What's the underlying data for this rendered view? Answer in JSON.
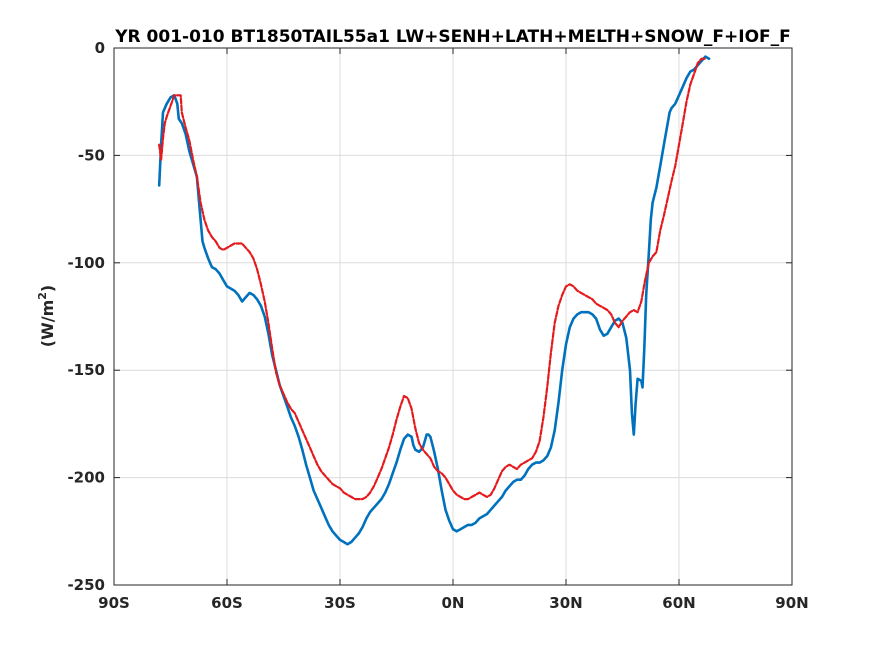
{
  "chart_data": {
    "type": "line",
    "title": "YR 001-010 BT1850TAIL55a1 LW+SENH+LATH+MELTH+SNOW_F+IOF_F",
    "xlabel": "",
    "ylabel": "(W/m",
    "ylabel_superscript": "2",
    "ylabel_suffix": ")",
    "xlim": [
      -90,
      90
    ],
    "ylim": [
      -250,
      0
    ],
    "xticks": [
      -90,
      -60,
      -30,
      0,
      30,
      60,
      90
    ],
    "xtick_labels": [
      "90S",
      "60S",
      "30S",
      "0N",
      "30N",
      "60N",
      "90N"
    ],
    "yticks": [
      -250,
      -200,
      -150,
      -100,
      -50,
      0
    ],
    "ytick_labels": [
      "-250",
      "-200",
      "-150",
      "-100",
      "-50",
      "0"
    ],
    "grid": true,
    "legend": false,
    "series": [
      {
        "color": "#0072BD",
        "style": "solid",
        "points": [
          [
            -78,
            -64
          ],
          [
            -77.5,
            -45
          ],
          [
            -77,
            -30
          ],
          [
            -76,
            -26
          ],
          [
            -75,
            -23
          ],
          [
            -74,
            -22
          ],
          [
            -73.2,
            -26
          ],
          [
            -72.8,
            -33
          ],
          [
            -72,
            -35
          ],
          [
            -71,
            -40
          ],
          [
            -70,
            -48
          ],
          [
            -69,
            -54
          ],
          [
            -68,
            -60
          ],
          [
            -67,
            -80
          ],
          [
            -66.5,
            -90
          ],
          [
            -66,
            -93
          ],
          [
            -65,
            -98
          ],
          [
            -64,
            -102
          ],
          [
            -63,
            -103
          ],
          [
            -62,
            -105
          ],
          [
            -61,
            -108
          ],
          [
            -60,
            -111
          ],
          [
            -59,
            -112
          ],
          [
            -58,
            -113
          ],
          [
            -57,
            -115
          ],
          [
            -56,
            -118
          ],
          [
            -55,
            -116
          ],
          [
            -54,
            -114
          ],
          [
            -53,
            -115
          ],
          [
            -52,
            -117
          ],
          [
            -51,
            -120
          ],
          [
            -50,
            -125
          ],
          [
            -49,
            -133
          ],
          [
            -48,
            -143
          ],
          [
            -47,
            -150
          ],
          [
            -46,
            -157
          ],
          [
            -45,
            -162
          ],
          [
            -44,
            -167
          ],
          [
            -43,
            -172
          ],
          [
            -42,
            -176
          ],
          [
            -41,
            -181
          ],
          [
            -40,
            -187
          ],
          [
            -39,
            -194
          ],
          [
            -38,
            -200
          ],
          [
            -37,
            -206
          ],
          [
            -36,
            -210
          ],
          [
            -35,
            -214
          ],
          [
            -34,
            -218
          ],
          [
            -33,
            -222
          ],
          [
            -32,
            -225
          ],
          [
            -31,
            -227
          ],
          [
            -30,
            -229
          ],
          [
            -29,
            -230
          ],
          [
            -28,
            -231
          ],
          [
            -27,
            -230
          ],
          [
            -26,
            -228
          ],
          [
            -25,
            -226
          ],
          [
            -24,
            -223
          ],
          [
            -23,
            -219
          ],
          [
            -22,
            -216
          ],
          [
            -21,
            -214
          ],
          [
            -20,
            -212
          ],
          [
            -19,
            -210
          ],
          [
            -18,
            -207
          ],
          [
            -17,
            -203
          ],
          [
            -16,
            -198
          ],
          [
            -15,
            -193
          ],
          [
            -14,
            -187
          ],
          [
            -13,
            -182
          ],
          [
            -12,
            -180
          ],
          [
            -11,
            -181
          ],
          [
            -10.5,
            -185
          ],
          [
            -10,
            -187
          ],
          [
            -9,
            -188
          ],
          [
            -8,
            -186
          ],
          [
            -7.5,
            -183
          ],
          [
            -7,
            -180
          ],
          [
            -6.5,
            -180
          ],
          [
            -6,
            -181
          ],
          [
            -5,
            -188
          ],
          [
            -4,
            -196
          ],
          [
            -3,
            -206
          ],
          [
            -2,
            -215
          ],
          [
            -1,
            -220
          ],
          [
            0,
            -224
          ],
          [
            1,
            -225
          ],
          [
            2,
            -224
          ],
          [
            3,
            -223
          ],
          [
            4,
            -222
          ],
          [
            5,
            -222
          ],
          [
            6,
            -221
          ],
          [
            7,
            -219
          ],
          [
            8,
            -218
          ],
          [
            9,
            -217
          ],
          [
            10,
            -215
          ],
          [
            11,
            -213
          ],
          [
            12,
            -211
          ],
          [
            13,
            -209
          ],
          [
            14,
            -206
          ],
          [
            15,
            -204
          ],
          [
            16,
            -202
          ],
          [
            17,
            -201
          ],
          [
            18,
            -201
          ],
          [
            19,
            -199
          ],
          [
            20,
            -196
          ],
          [
            21,
            -194
          ],
          [
            22,
            -193
          ],
          [
            23,
            -193
          ],
          [
            24,
            -192
          ],
          [
            25,
            -190
          ],
          [
            26,
            -186
          ],
          [
            27,
            -178
          ],
          [
            28,
            -165
          ],
          [
            29,
            -150
          ],
          [
            30,
            -138
          ],
          [
            31,
            -130
          ],
          [
            32,
            -126
          ],
          [
            33,
            -124
          ],
          [
            34,
            -123
          ],
          [
            35,
            -123
          ],
          [
            36,
            -123
          ],
          [
            37,
            -124
          ],
          [
            38,
            -126
          ],
          [
            39,
            -131
          ],
          [
            40,
            -134
          ],
          [
            41,
            -133
          ],
          [
            42,
            -130
          ],
          [
            43,
            -127
          ],
          [
            44,
            -126
          ],
          [
            45,
            -128
          ],
          [
            46,
            -135
          ],
          [
            47,
            -150
          ],
          [
            47.5,
            -170
          ],
          [
            48,
            -180
          ],
          [
            48.5,
            -165
          ],
          [
            49,
            -154
          ],
          [
            50,
            -155
          ],
          [
            50.3,
            -158
          ],
          [
            50.8,
            -140
          ],
          [
            51.3,
            -115
          ],
          [
            52,
            -95
          ],
          [
            52.5,
            -80
          ],
          [
            53,
            -72
          ],
          [
            54,
            -65
          ],
          [
            55,
            -55
          ],
          [
            56,
            -45
          ],
          [
            57,
            -35
          ],
          [
            57.5,
            -30
          ],
          [
            58,
            -28
          ],
          [
            59,
            -26
          ],
          [
            60,
            -22
          ],
          [
            61,
            -18
          ],
          [
            62,
            -14
          ],
          [
            63,
            -11
          ],
          [
            64,
            -10
          ],
          [
            65,
            -8
          ],
          [
            66,
            -6
          ],
          [
            67,
            -4
          ],
          [
            68,
            -5
          ]
        ]
      },
      {
        "color": "#E41A1C",
        "style": "dashed",
        "points": [
          [
            -78,
            -45
          ],
          [
            -77.5,
            -52
          ],
          [
            -77,
            -42
          ],
          [
            -76.5,
            -35
          ],
          [
            -76,
            -32
          ],
          [
            -75,
            -27
          ],
          [
            -74,
            -22
          ],
          [
            -73,
            -22
          ],
          [
            -72.3,
            -22
          ],
          [
            -72,
            -30
          ],
          [
            -71,
            -37
          ],
          [
            -70,
            -43
          ],
          [
            -69,
            -52
          ],
          [
            -68,
            -60
          ],
          [
            -67,
            -72
          ],
          [
            -66,
            -80
          ],
          [
            -65,
            -85
          ],
          [
            -64,
            -88
          ],
          [
            -63,
            -90
          ],
          [
            -62,
            -93
          ],
          [
            -61,
            -94
          ],
          [
            -60,
            -93
          ],
          [
            -59,
            -92
          ],
          [
            -58,
            -91
          ],
          [
            -57,
            -91
          ],
          [
            -56,
            -91
          ],
          [
            -55,
            -93
          ],
          [
            -54,
            -95
          ],
          [
            -53,
            -98
          ],
          [
            -52,
            -103
          ],
          [
            -51,
            -110
          ],
          [
            -50,
            -118
          ],
          [
            -49,
            -128
          ],
          [
            -48,
            -140
          ],
          [
            -47,
            -151
          ],
          [
            -46,
            -157
          ],
          [
            -45,
            -161
          ],
          [
            -44,
            -165
          ],
          [
            -43,
            -168
          ],
          [
            -42,
            -170
          ],
          [
            -41,
            -174
          ],
          [
            -40,
            -178
          ],
          [
            -39,
            -182
          ],
          [
            -38,
            -186
          ],
          [
            -37,
            -190
          ],
          [
            -36,
            -194
          ],
          [
            -35,
            -197
          ],
          [
            -34,
            -199
          ],
          [
            -33,
            -201
          ],
          [
            -32,
            -203
          ],
          [
            -31,
            -204
          ],
          [
            -30,
            -205
          ],
          [
            -29,
            -207
          ],
          [
            -28,
            -208
          ],
          [
            -27,
            -209
          ],
          [
            -26,
            -210
          ],
          [
            -25,
            -210
          ],
          [
            -24,
            -210
          ],
          [
            -23,
            -209
          ],
          [
            -22,
            -207
          ],
          [
            -21,
            -204
          ],
          [
            -20,
            -200
          ],
          [
            -19,
            -196
          ],
          [
            -18,
            -191
          ],
          [
            -17,
            -186
          ],
          [
            -16,
            -180
          ],
          [
            -15,
            -173
          ],
          [
            -14,
            -167
          ],
          [
            -13,
            -162
          ],
          [
            -12,
            -163
          ],
          [
            -11,
            -168
          ],
          [
            -10,
            -177
          ],
          [
            -9,
            -184
          ],
          [
            -8,
            -187
          ],
          [
            -7,
            -189
          ],
          [
            -6,
            -191
          ],
          [
            -5,
            -195
          ],
          [
            -4,
            -197
          ],
          [
            -3,
            -198
          ],
          [
            -2,
            -200
          ],
          [
            -1,
            -203
          ],
          [
            0,
            -206
          ],
          [
            1,
            -208
          ],
          [
            2,
            -209
          ],
          [
            3,
            -210
          ],
          [
            4,
            -210
          ],
          [
            5,
            -209
          ],
          [
            6,
            -208
          ],
          [
            7,
            -207
          ],
          [
            8,
            -208
          ],
          [
            9,
            -209
          ],
          [
            10,
            -208
          ],
          [
            11,
            -205
          ],
          [
            12,
            -201
          ],
          [
            13,
            -197
          ],
          [
            14,
            -195
          ],
          [
            15,
            -194
          ],
          [
            16,
            -195
          ],
          [
            17,
            -196
          ],
          [
            18,
            -194
          ],
          [
            19,
            -193
          ],
          [
            20,
            -192
          ],
          [
            21,
            -191
          ],
          [
            22,
            -188
          ],
          [
            23,
            -183
          ],
          [
            24,
            -172
          ],
          [
            25,
            -158
          ],
          [
            26,
            -142
          ],
          [
            27,
            -128
          ],
          [
            28,
            -120
          ],
          [
            29,
            -115
          ],
          [
            30,
            -111
          ],
          [
            31,
            -110
          ],
          [
            32,
            -111
          ],
          [
            33,
            -113
          ],
          [
            34,
            -114
          ],
          [
            35,
            -115
          ],
          [
            36,
            -116
          ],
          [
            37,
            -117
          ],
          [
            38,
            -119
          ],
          [
            39,
            -120
          ],
          [
            40,
            -121
          ],
          [
            41,
            -122
          ],
          [
            42,
            -124
          ],
          [
            43,
            -128
          ],
          [
            44,
            -130
          ],
          [
            45,
            -127
          ],
          [
            46,
            -125
          ],
          [
            47,
            -123
          ],
          [
            48,
            -122
          ],
          [
            49,
            -123
          ],
          [
            50,
            -118
          ],
          [
            51,
            -108
          ],
          [
            52,
            -100
          ],
          [
            53,
            -97
          ],
          [
            54,
            -95
          ],
          [
            55,
            -85
          ],
          [
            56,
            -78
          ],
          [
            57,
            -70
          ],
          [
            58,
            -62
          ],
          [
            59,
            -55
          ],
          [
            60,
            -45
          ],
          [
            61,
            -35
          ],
          [
            62,
            -25
          ],
          [
            63,
            -17
          ],
          [
            64,
            -12
          ],
          [
            65,
            -7
          ],
          [
            66,
            -5
          ],
          [
            67,
            -5
          ]
        ]
      }
    ]
  }
}
